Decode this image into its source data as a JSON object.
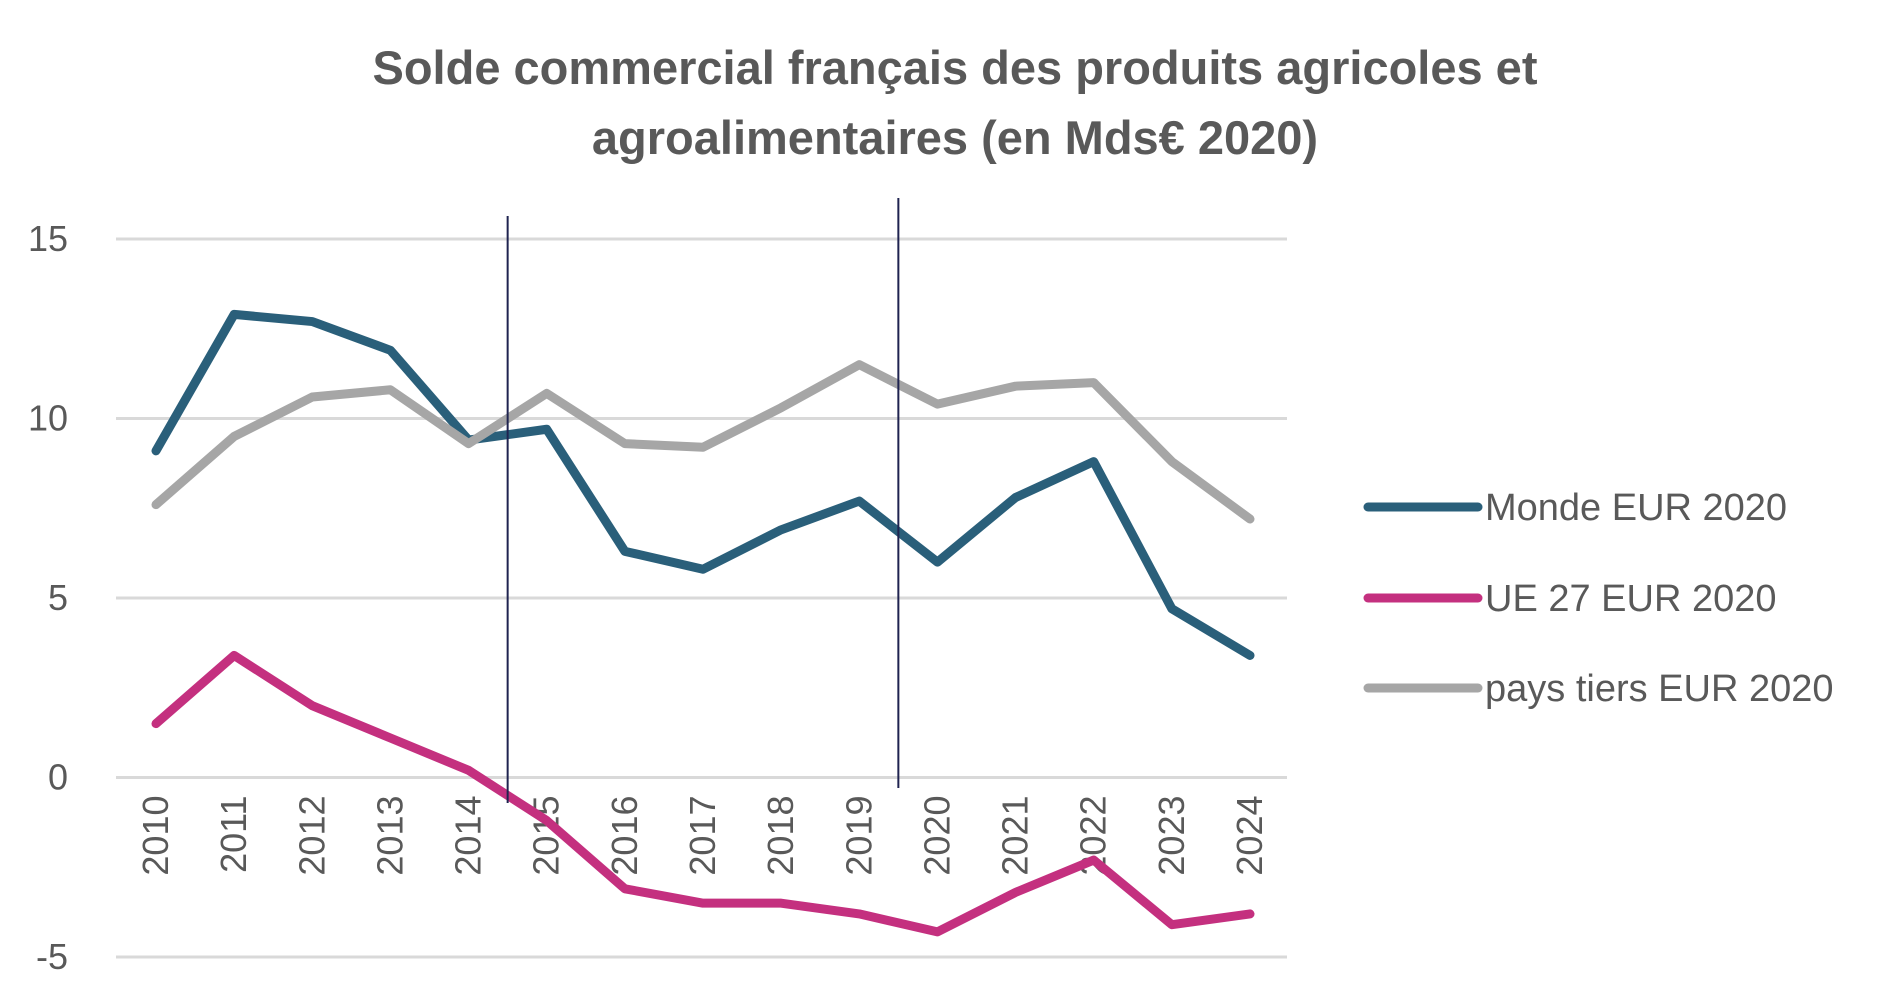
{
  "chart_data": {
    "type": "line",
    "title": "Solde commercial français des produits agricoles et agroalimentaires (en Mds€ 2020)",
    "title_lines": [
      "Solde commercial français des produits agricoles et",
      "agroalimentaires (en Mds€ 2020)"
    ],
    "xlabel": "",
    "ylabel": "",
    "categories": [
      "2010",
      "2011",
      "2012",
      "2013",
      "2014",
      "2015",
      "2016",
      "2017",
      "2018",
      "2019",
      "2020",
      "2021",
      "2022",
      "2023",
      "2024"
    ],
    "ylim": [
      -5,
      15
    ],
    "yticks": [
      15,
      10,
      5,
      0,
      -5
    ],
    "grid": true,
    "legend_position": "right",
    "series": [
      {
        "name": "Monde EUR 2020",
        "color": "#2a5f7a",
        "values": [
          9.1,
          12.9,
          12.7,
          11.9,
          9.4,
          9.7,
          6.3,
          5.8,
          6.9,
          7.7,
          6.0,
          7.8,
          8.8,
          4.7,
          3.4
        ]
      },
      {
        "name": "UE 27 EUR 2020",
        "color": "#c4307f",
        "values": [
          1.5,
          3.4,
          2.0,
          1.1,
          0.2,
          -1.2,
          -3.1,
          -3.5,
          -3.5,
          -3.8,
          -4.3,
          -3.2,
          -2.3,
          -4.1,
          -3.8
        ]
      },
      {
        "name": "pays tiers EUR 2020",
        "color": "#a6a6a6",
        "values": [
          7.6,
          9.5,
          10.6,
          10.8,
          9.3,
          10.7,
          9.3,
          9.2,
          10.3,
          11.5,
          10.4,
          10.9,
          11.0,
          8.8,
          7.2
        ]
      }
    ],
    "vertical_markers": {
      "color": "#1f2350",
      "between": [
        [
          "2014",
          "2015"
        ],
        [
          "2019",
          "2020"
        ]
      ]
    }
  }
}
